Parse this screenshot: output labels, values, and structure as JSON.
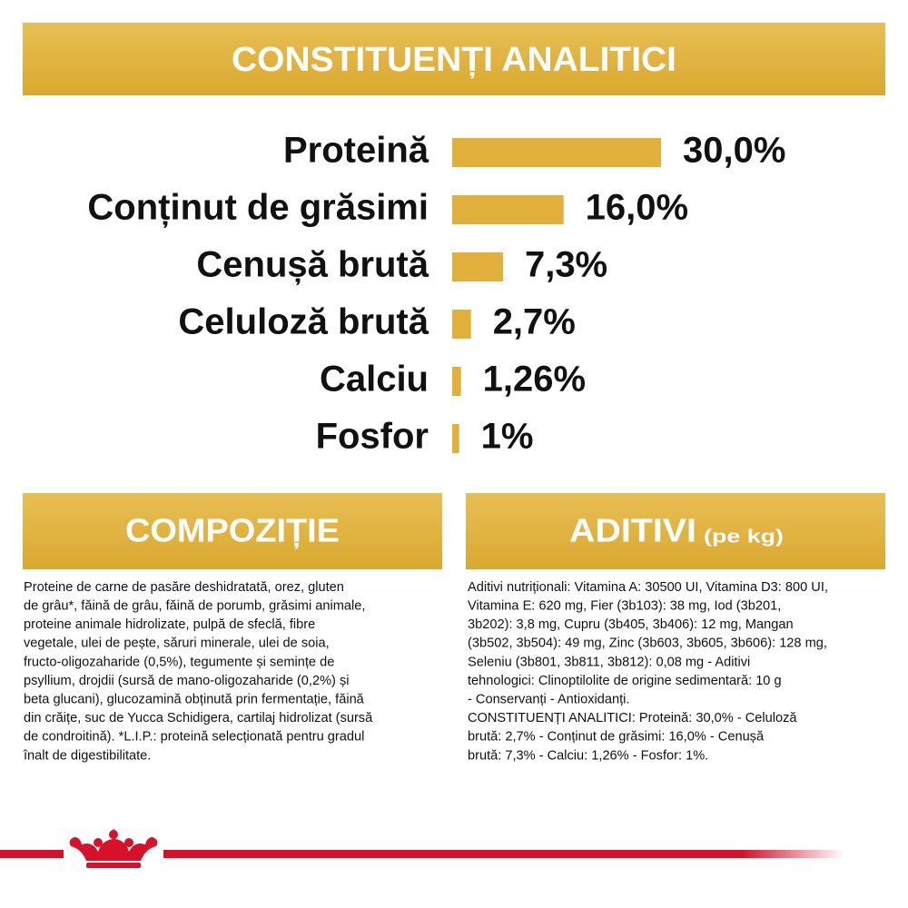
{
  "chart_data": {
    "type": "bar",
    "title": "CONSTITUENȚI ANALITICI",
    "categories": [
      "Proteină",
      "Conținut de grăsimi",
      "Cenușă brută",
      "Celuloză brută",
      "Calciu",
      "Fosfor"
    ],
    "values": [
      30.0,
      16.0,
      7.3,
      2.7,
      1.26,
      1
    ],
    "value_labels": [
      "30,0%",
      "16,0%",
      "7,3%",
      "2,7%",
      "1,26%",
      "1%"
    ],
    "color": "#e0b03a"
  },
  "composition": {
    "title": "COMPOZIȚIE",
    "lines": [
      "Proteine de carne de pasăre deshidratată, orez, gluten",
      "de grâu*, făină de grâu, făină de porumb, grăsimi animale,",
      "proteine animale hidrolizate, pulpă de sfeclă, fibre",
      "vegetale, ulei de pește, săruri minerale, ulei de soia,",
      "fructo-oligozaharide (0,5%), tegumente și semințe de",
      "psyllium, drojdii (sursă de mano-oligozaharide (0,2%) și",
      "beta glucani), glucozamină obținută prin fermentație, făină",
      "din crăițe, suc de Yucca Schidigera, cartilaj hidrolizat (sursă",
      "de condroitină). *L.I.P.: proteină selecționată pentru gradul",
      "înalt de digestibilitate."
    ]
  },
  "additives": {
    "title": "ADITIVI",
    "subtitle": "(pe kg)",
    "lines": [
      "Aditivi nutriționali: Vitamina A: 30500 UI, Vitamina D3: 800 UI,",
      "Vitamina E: 620 mg, Fier (3b103): 38 mg, Iod (3b201,",
      "3b202): 3,8 mg, Cupru (3b405, 3b406): 12 mg, Mangan",
      "(3b502, 3b504): 49 mg, Zinc (3b603, 3b605, 3b606): 128 mg,",
      "Seleniu (3b801, 3b811, 3b812): 0,08 mg - Aditivi",
      "tehnologici: Clinoptilolite de origine sedimentară: 10 g",
      "- Conservanți - Antioxidanți.",
      "CONSTITUENȚI ANALITICI: Proteină: 30,0% - Celuloză",
      "brută: 2,7% - Conținut de grăsimi: 16,0% - Cenușă",
      "brută: 7,3% - Calciu: 1,26% - Fosfor: 1%."
    ]
  }
}
